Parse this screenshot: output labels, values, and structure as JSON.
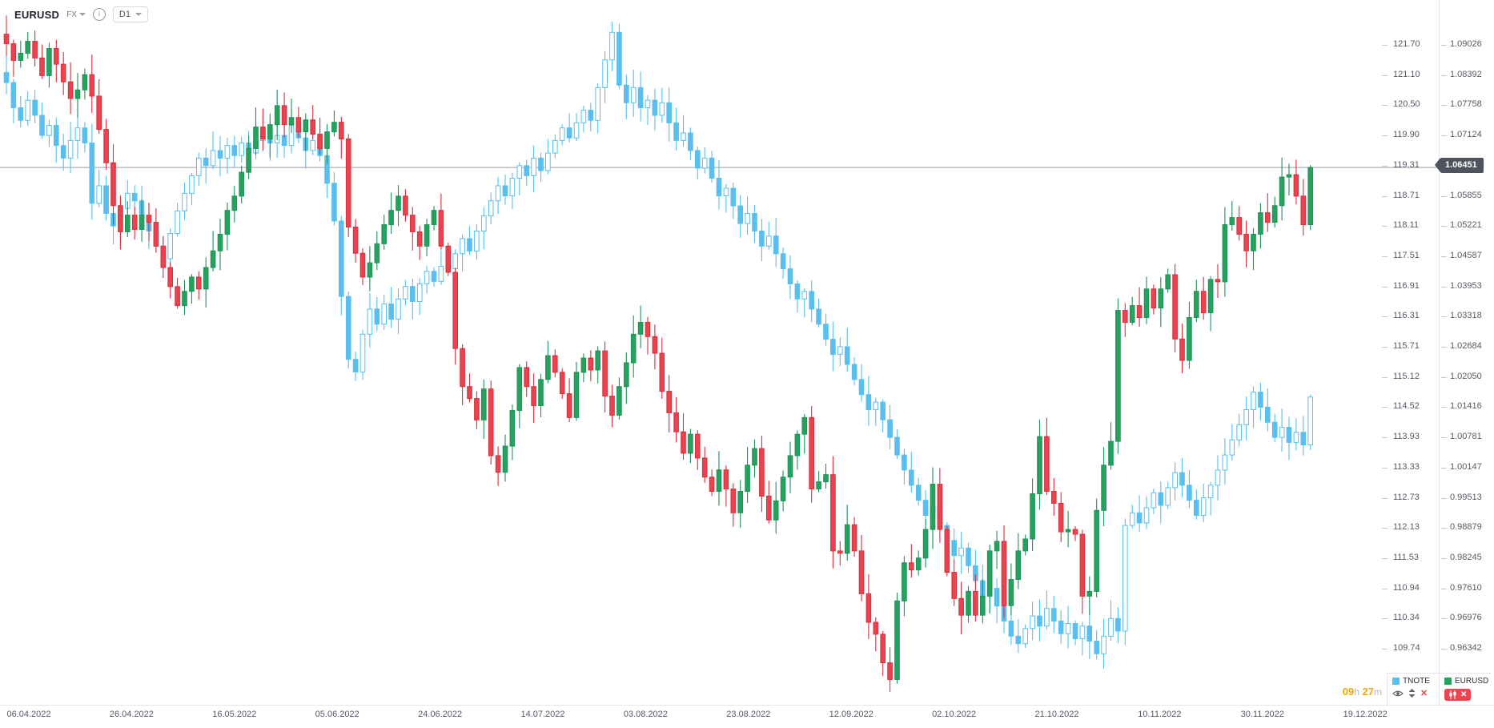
{
  "header": {
    "symbol": "EURUSD",
    "market_label": "FX",
    "info_glyph": "i",
    "timeframe": "D1"
  },
  "timer": {
    "hours": "09",
    "hours_unit": "h",
    "minutes": "27",
    "minutes_unit": "m"
  },
  "legend": {
    "items": [
      {
        "label": "TNOTE",
        "color": "#58bfef"
      },
      {
        "label": "EURUSD",
        "color": "#26a25f"
      }
    ],
    "tnote_controls": [
      "eye-icon",
      "scale-arrows-icon",
      "close-icon"
    ],
    "eurusd_controls": [
      "candlestick-icon",
      "close-icon"
    ]
  },
  "price_axis": {
    "left_labels": [
      "121.70",
      "121.10",
      "120.50",
      "119.90",
      "119.31",
      "118.71",
      "118.11",
      "117.51",
      "116.91",
      "116.31",
      "115.71",
      "115.12",
      "114.52",
      "113.93",
      "113.33",
      "112.73",
      "112.13",
      "111.53",
      "110.94",
      "110.34",
      "109.74"
    ],
    "right_labels": [
      "1.09026",
      "1.08392",
      "1.07758",
      "1.07124",
      "",
      "1.05855",
      "1.05221",
      "1.04587",
      "1.03953",
      "1.03318",
      "1.02684",
      "1.02050",
      "1.01416",
      "1.00781",
      "1.00147",
      "0.99513",
      "0.98879",
      "0.98245",
      "0.97610",
      "0.96976",
      "0.96342"
    ],
    "price_tag": "1.06451"
  },
  "time_axis": {
    "labels": [
      "06.04.2022",
      "26.04.2022",
      "16.05.2022",
      "05.06.2022",
      "24.06.2022",
      "14.07.2022",
      "03.08.2022",
      "23.08.2022",
      "12.09.2022",
      "02.10.2022",
      "21.10.2022",
      "10.11.2022",
      "30.11.2022",
      "19.12.2022"
    ]
  },
  "chart_data": {
    "type": "candlestick",
    "overlay": true,
    "timeframe": "D1",
    "current_price": 1.06451,
    "current_price_line_color": "#989ca6",
    "series": [
      {
        "name": "TNOTE",
        "style": "hollow-up",
        "color": "#58bfef",
        "axis": {
          "top_label": 121.7,
          "label_step": 0.6,
          "unit_range_shown": [
            109.74,
            121.7
          ]
        },
        "first_open": 121.15,
        "wick_scale": 0.38,
        "closes": [
          120.95,
          120.45,
          120.2,
          120.6,
          120.3,
          119.9,
          120.1,
          119.7,
          119.45,
          119.8,
          120.05,
          119.75,
          118.55,
          118.9,
          118.35,
          118.1,
          118.45,
          118.75,
          118.6,
          118.3,
          118.0,
          117.7,
          117.45,
          117.95,
          118.4,
          118.75,
          119.1,
          119.45,
          119.3,
          119.6,
          119.45,
          119.7,
          119.5,
          119.75,
          119.55,
          119.8,
          120.0,
          119.75,
          119.9,
          119.7,
          120.1,
          119.85,
          119.6,
          119.8,
          119.5,
          118.95,
          118.2,
          116.7,
          115.45,
          115.2,
          115.95,
          116.45,
          116.15,
          116.55,
          116.25,
          116.65,
          116.9,
          116.6,
          116.95,
          117.2,
          117.0,
          117.3,
          117.25,
          117.55,
          117.85,
          117.6,
          118.0,
          118.3,
          118.6,
          118.9,
          118.7,
          119.05,
          119.3,
          119.1,
          119.45,
          119.2,
          119.55,
          119.8,
          120.05,
          119.85,
          120.15,
          120.4,
          120.2,
          120.85,
          121.4,
          121.95,
          120.9,
          120.55,
          120.85,
          120.45,
          120.6,
          120.3,
          120.55,
          120.15,
          119.8,
          119.95,
          119.6,
          119.25,
          119.45,
          119.05,
          118.7,
          118.85,
          118.5,
          118.15,
          118.35,
          118.0,
          117.7,
          117.9,
          117.55,
          117.25,
          116.95,
          116.65,
          116.8,
          116.45,
          116.15,
          115.85,
          115.55,
          115.7,
          115.35,
          115.05,
          114.75,
          114.45,
          114.6,
          114.25,
          113.9,
          113.55,
          113.25,
          112.95,
          112.65,
          112.35,
          112.5,
          112.15,
          111.85,
          111.55,
          111.7,
          111.35,
          111.05,
          110.75,
          110.9,
          110.55,
          110.25,
          109.95,
          109.8,
          110.1,
          110.35,
          110.15,
          110.5,
          110.25,
          110.0,
          110.2,
          109.9,
          110.15,
          109.85,
          109.6,
          109.95,
          110.3,
          110.05,
          112.15,
          112.4,
          112.2,
          112.5,
          112.8,
          112.55,
          112.9,
          113.2,
          112.95,
          112.65,
          112.35,
          112.7,
          112.95,
          113.25,
          113.55,
          113.85,
          114.15,
          114.45,
          114.8,
          114.5,
          114.2,
          113.9,
          114.1,
          113.8,
          114.0,
          113.75,
          114.7
        ]
      },
      {
        "name": "EURUSD",
        "style": "solid",
        "color_up": "#26a25f",
        "color_down": "#e8434e",
        "stroke_up": "#1d9157",
        "stroke_down": "#d6303c",
        "axis": {
          "top_label": 1.09026,
          "label_step": 0.00634,
          "unit_range_shown": [
            0.96342,
            1.09026
          ]
        },
        "first_open": 1.0925,
        "wick_scale": 0.0042,
        "closes": [
          1.0905,
          1.087,
          1.0885,
          1.091,
          1.0875,
          1.0838,
          1.0895,
          1.0862,
          1.0825,
          1.079,
          1.0808,
          1.084,
          1.0795,
          1.0725,
          1.0655,
          1.0565,
          1.051,
          1.0545,
          1.0515,
          1.0545,
          1.053,
          1.048,
          1.0435,
          1.0395,
          1.0355,
          1.0385,
          1.0415,
          1.039,
          1.0435,
          1.047,
          1.0505,
          1.0555,
          1.0585,
          1.0635,
          1.0685,
          1.073,
          1.0705,
          1.0735,
          1.0775,
          1.0735,
          1.075,
          1.072,
          1.0745,
          1.0715,
          1.0685,
          1.072,
          1.074,
          1.0705,
          1.052,
          1.0465,
          1.0415,
          1.0445,
          1.0485,
          1.0525,
          1.0555,
          1.0585,
          1.0545,
          1.051,
          1.048,
          1.0525,
          1.0555,
          1.048,
          1.0425,
          1.0265,
          1.0185,
          1.016,
          1.0115,
          1.018,
          1.004,
          1.0005,
          1.006,
          1.0135,
          1.0225,
          1.0185,
          1.0145,
          1.02,
          1.025,
          1.0215,
          1.017,
          1.012,
          1.0215,
          1.0245,
          1.022,
          1.026,
          1.0165,
          1.0125,
          1.0185,
          1.0235,
          1.0295,
          1.032,
          1.029,
          1.0255,
          1.0175,
          1.013,
          1.009,
          1.0045,
          1.0085,
          1.0035,
          0.9995,
          0.9965,
          1.001,
          0.997,
          0.992,
          0.9965,
          1.002,
          1.0055,
          0.9955,
          0.9905,
          0.9945,
          0.9995,
          1.004,
          1.0085,
          1.012,
          0.997,
          0.9985,
          1.0,
          0.984,
          0.9835,
          0.9895,
          0.984,
          0.975,
          0.969,
          0.9665,
          0.9605,
          0.957,
          0.9735,
          0.9815,
          0.98,
          0.9825,
          0.9885,
          0.998,
          0.9885,
          0.9795,
          0.974,
          0.9705,
          0.9755,
          0.9705,
          0.9745,
          0.984,
          0.986,
          0.9725,
          0.978,
          0.984,
          0.9865,
          0.996,
          1.008,
          0.9965,
          0.994,
          0.988,
          0.9885,
          0.9875,
          0.9745,
          0.9755,
          0.9925,
          1.002,
          1.007,
          1.0345,
          1.032,
          1.0355,
          1.033,
          1.039,
          1.035,
          1.039,
          1.042,
          1.0285,
          1.024,
          1.033,
          1.0385,
          1.034,
          1.041,
          1.0405,
          1.0525,
          1.054,
          1.0505,
          1.047,
          1.0505,
          1.055,
          1.053,
          1.0565,
          1.0625,
          1.063,
          1.0585,
          1.0525,
          1.0645
        ]
      }
    ]
  }
}
